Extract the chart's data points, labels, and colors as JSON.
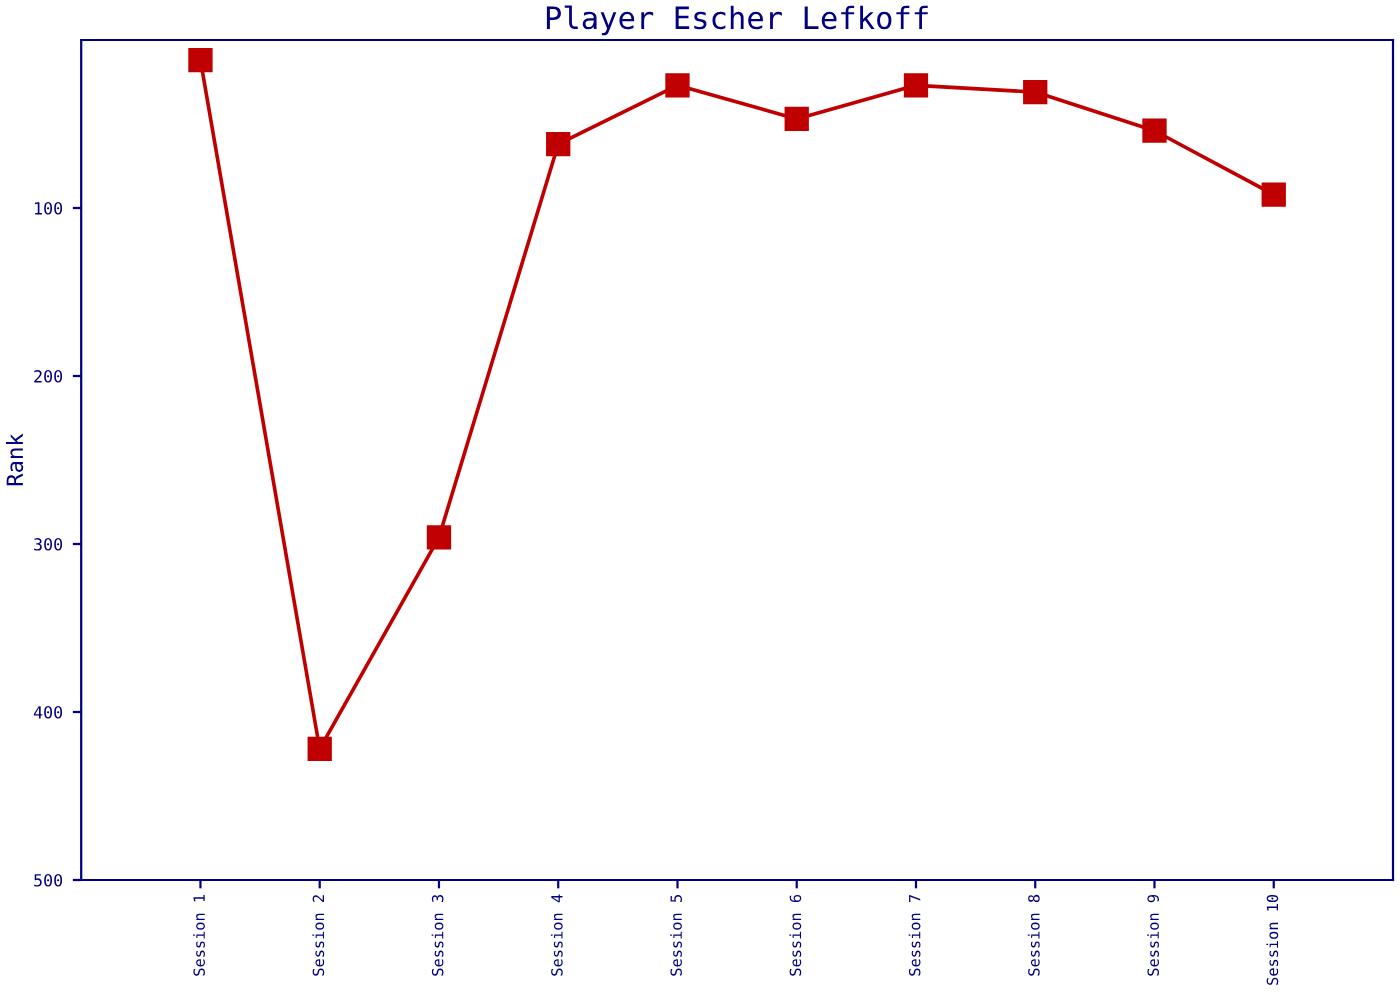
{
  "chart_data": {
    "type": "line",
    "title": "Player Escher Lefkoff",
    "ylabel": "Rank",
    "categories": [
      "Session 1",
      "Session 2",
      "Session 3",
      "Session 4",
      "Session 5",
      "Session 6",
      "Session 7",
      "Session 8",
      "Session 9",
      "Session 10"
    ],
    "series": [
      {
        "color": "#c00000",
        "values": [
          12,
          422,
          296,
          62,
          27,
          47,
          27,
          31,
          54,
          92
        ]
      }
    ],
    "ylim": [
      500,
      0
    ],
    "yticks": [
      100,
      200,
      300,
      400,
      500
    ],
    "grid": false,
    "legend": false,
    "marker": "square",
    "line_style": "solid"
  }
}
